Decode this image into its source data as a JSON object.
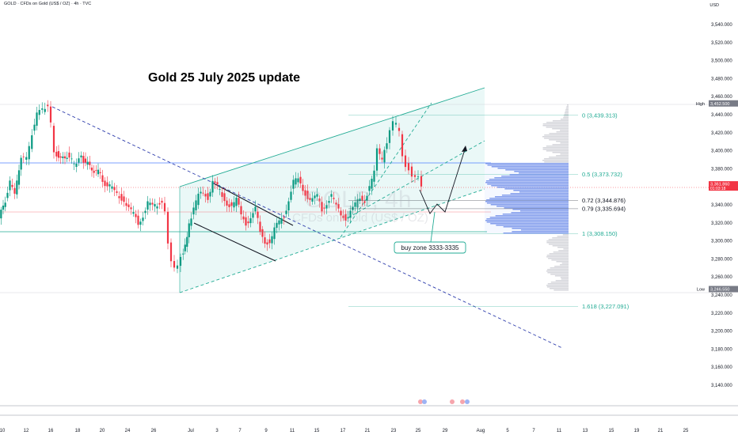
{
  "header": {
    "symbol_line": "GOLD · CFDs on Gold (US$ / OZ) · 4h · TVC",
    "currency": "USD",
    "watermark_symbol": "GOLD, 4h",
    "watermark_desc": "CFDs on Gold (US$ / OZ)"
  },
  "chart_data": {
    "type": "candlestick",
    "title": "Gold 25 July 2025 update",
    "x_tick_labels": [
      "10",
      "12",
      "16",
      "18",
      "20",
      "24",
      "26",
      "Jul",
      "3",
      "7",
      "9",
      "11",
      "15",
      "17",
      "21",
      "23",
      "25",
      "29",
      "Aug",
      "5",
      "7",
      "11",
      "13",
      "15",
      "19",
      "21",
      "25"
    ],
    "y_tick_labels": [
      "3,540.000",
      "3,520.000",
      "3,500.000",
      "3,480.000",
      "3,460.000",
      "3,440.000",
      "3,420.000",
      "3,400.000",
      "3,380.000",
      "3,360.000",
      "3,340.000",
      "3,320.000",
      "3,300.000",
      "3,280.000",
      "3,260.000",
      "3,240.000",
      "3,220.000",
      "3,200.000",
      "3,180.000",
      "3,160.000",
      "3,140.000"
    ],
    "y_range": [
      3126,
      3552
    ],
    "price_markers": [
      {
        "label": "High",
        "value": "3,452.500",
        "price": 3452.5,
        "color": "#787b86"
      },
      {
        "label": "",
        "value": "3,361.860",
        "sub": "01:03:18",
        "price": 3361.86,
        "color": "#f23645"
      },
      {
        "label": "Low",
        "value": "3,246.550",
        "price": 3246.55,
        "color": "#787b86"
      }
    ],
    "fib_levels": [
      {
        "label": "0 (3,439.313)",
        "price": 3439.313,
        "color": "#22ab94"
      },
      {
        "label": "0.5 (3,373.732)",
        "price": 3373.732,
        "color": "#22ab94"
      },
      {
        "label": "0.72 (3,344.876)",
        "price": 3344.876,
        "color": "#131722"
      },
      {
        "label": "0.79 (3,335.694)",
        "price": 3335.694,
        "color": "#131722"
      },
      {
        "label": "1 (3,308.150)",
        "price": 3308.15,
        "color": "#22ab94"
      },
      {
        "label": "1.618 (3,227.091)",
        "price": 3227.091,
        "color": "#22ab94"
      }
    ],
    "annotation": "buy zone 3333-3335",
    "candle_color_up": "#089981",
    "candle_color_down": "#f23645"
  },
  "colors": {
    "channel": "#22ab94",
    "channel_fill": "#e6f7f6",
    "trendline": "#2f3eac",
    "volume_profile_gray": "#b2b5be",
    "volume_profile_blue": "#5b7fe6"
  }
}
